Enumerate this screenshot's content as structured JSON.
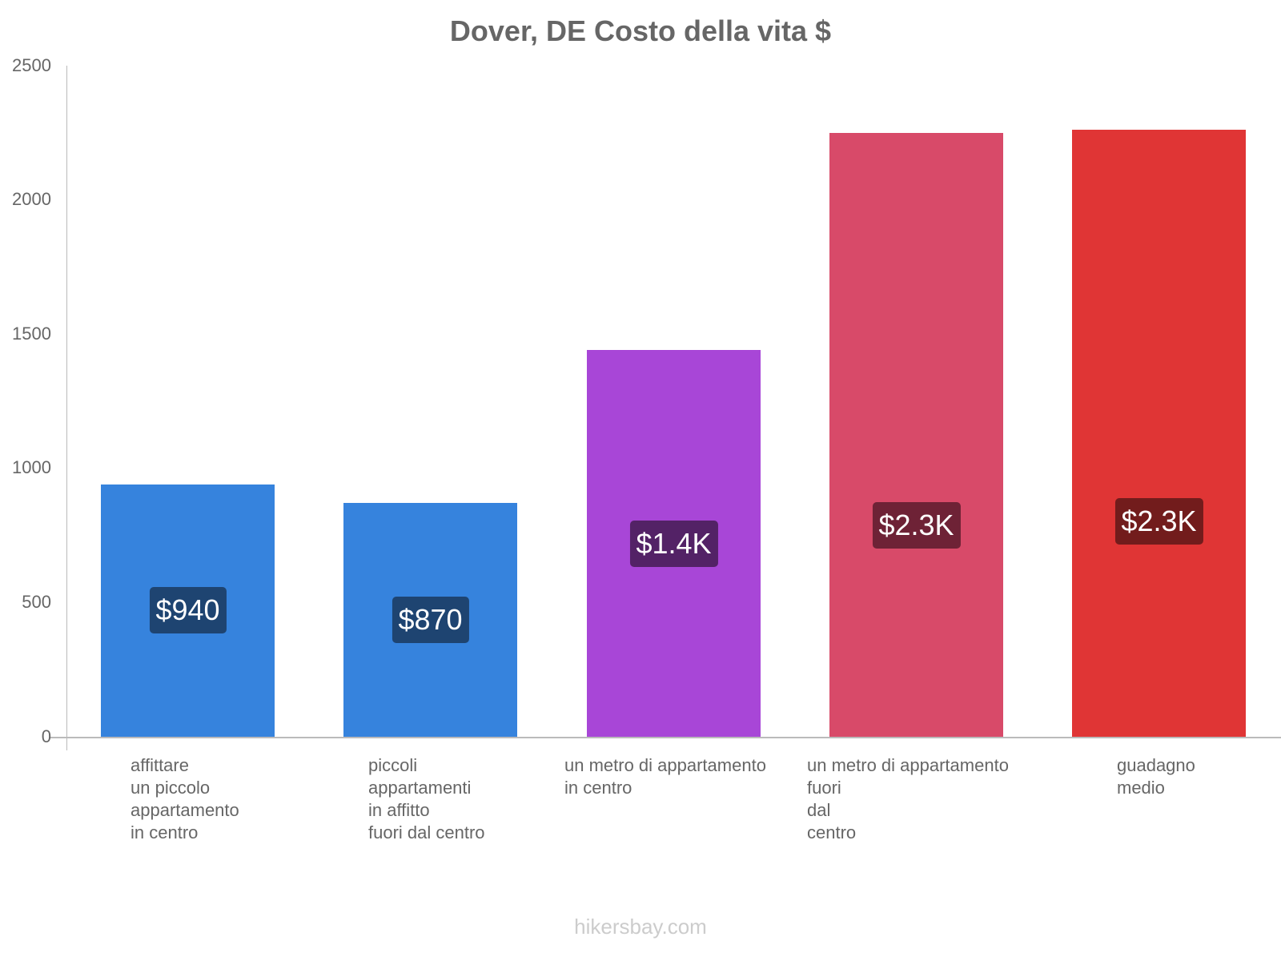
{
  "chart_data": {
    "type": "bar",
    "title": "Dover, DE Costo della vita $",
    "xlabel": "",
    "ylabel": "",
    "ylim": [
      0,
      2500
    ],
    "yticks": [
      0,
      500,
      1000,
      1500,
      2000,
      2500
    ],
    "grid": false,
    "legend": null,
    "categories": [
      "affittare un piccolo appartamento in centro",
      "piccoli appartamenti in affitto fuori dal centro",
      "un metro di appartamento in centro",
      "un metro di appartamento fuori dal centro",
      "guadagno medio"
    ],
    "values": [
      940,
      870,
      1440,
      2250,
      2260
    ],
    "data_labels": [
      "$940",
      "$870",
      "$1.4K",
      "$2.3K",
      "$2.3K"
    ],
    "colors": [
      "#3683dd",
      "#3683dd",
      "#a846d7",
      "#d84a69",
      "#e03535"
    ],
    "label_bg_colors": [
      "#1e4471",
      "#1e4471",
      "#532266",
      "#6e2236",
      "#721c1c"
    ]
  },
  "title": "Dover, DE Costo della vita $",
  "yticks": [
    "0",
    "500",
    "1000",
    "1500",
    "2000",
    "2500"
  ],
  "bars": [
    {
      "label_lines": "affittare\nun piccolo\nappartamento\nin centro",
      "value_label": "$940"
    },
    {
      "label_lines": "piccoli\nappartamenti\nin affitto\nfuori dal centro",
      "value_label": "$870"
    },
    {
      "label_lines": "un metro di appartamento\nin centro",
      "value_label": "$1.4K"
    },
    {
      "label_lines": "un metro di appartamento\nfuori\ndal\ncentro",
      "value_label": "$2.3K"
    },
    {
      "label_lines": "guadagno\nmedio",
      "value_label": "$2.3K"
    }
  ],
  "watermark": "hikersbay.com"
}
